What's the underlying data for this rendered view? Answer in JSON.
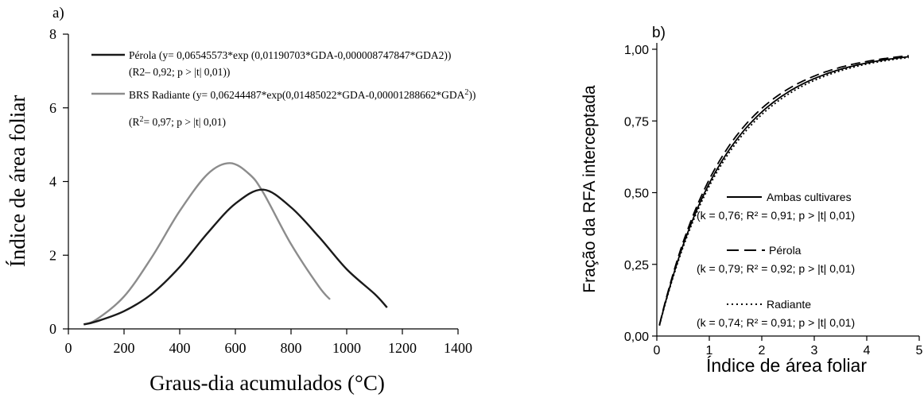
{
  "chart_data": [
    {
      "panel": "a)",
      "type": "line",
      "xlabel": "Graus-dia acumulados (°C)",
      "ylabel": "Índice de área foliar",
      "xlim": [
        0,
        1400
      ],
      "ylim": [
        0,
        8
      ],
      "xticks": [
        "0",
        "200",
        "400",
        "600",
        "800",
        "1000",
        "1200",
        "1400"
      ],
      "yticks": [
        "0",
        "2",
        "4",
        "6",
        "8"
      ],
      "grid": false,
      "legend_position": "top-right",
      "series": [
        {
          "name": "Pérola (y= 0,06545573*exp (0,01190703*GDA-0,000008747847*GDA2))",
          "stats": "(R2– 0,92; p > |t| 0,01))",
          "color": "#1a1a1a",
          "x": [
            55,
            100,
            200,
            300,
            400,
            500,
            600,
            700,
            800,
            900,
            1000,
            1100,
            1145
          ],
          "y": [
            0.12,
            0.2,
            0.48,
            0.95,
            1.68,
            2.6,
            3.4,
            3.78,
            3.3,
            2.5,
            1.62,
            0.95,
            0.58
          ]
        },
        {
          "name": "BRS Radiante (y= 0,06244487*exp(0,01485022*GDA-0,00001288662*GDA2))",
          "stats": "(R2= 0,97; p > |t| 0,01)",
          "color": "#8c8c8c",
          "x": [
            55,
            100,
            200,
            300,
            400,
            500,
            580,
            650,
            700,
            800,
            900,
            940
          ],
          "y": [
            0.12,
            0.25,
            0.88,
            1.95,
            3.2,
            4.2,
            4.5,
            4.2,
            3.7,
            2.3,
            1.15,
            0.8
          ]
        }
      ]
    },
    {
      "panel": "b)",
      "type": "line",
      "xlabel": "Índice de área foliar",
      "ylabel": "Fração da RFA interceptada",
      "xlim": [
        0,
        5
      ],
      "ylim": [
        0,
        1
      ],
      "xticks": [
        "0",
        "1",
        "2",
        "3",
        "4",
        "5"
      ],
      "yticks": [
        "0,00",
        "0,25",
        "0,50",
        "0,75",
        "1,00"
      ],
      "grid": false,
      "legend_position": "bottom-right",
      "series": [
        {
          "name": "Ambas cultivares",
          "stats": "(k = 0,76; R² = 0,91; p > |t| 0,01)",
          "k": 0.76,
          "style": "solid",
          "x_range": [
            0.05,
            4.8
          ]
        },
        {
          "name": "Pérola",
          "stats": "(k = 0,79; R² = 0,92; p > |t| 0,01)",
          "k": 0.79,
          "style": "dashed",
          "x_range": [
            0.05,
            4.8
          ]
        },
        {
          "name": "Radiante",
          "stats": "(k = 0,74; R² = 0,91; p > |t| 0,01)",
          "k": 0.74,
          "style": "dotted",
          "x_range": [
            0.05,
            4.8
          ]
        }
      ]
    }
  ]
}
